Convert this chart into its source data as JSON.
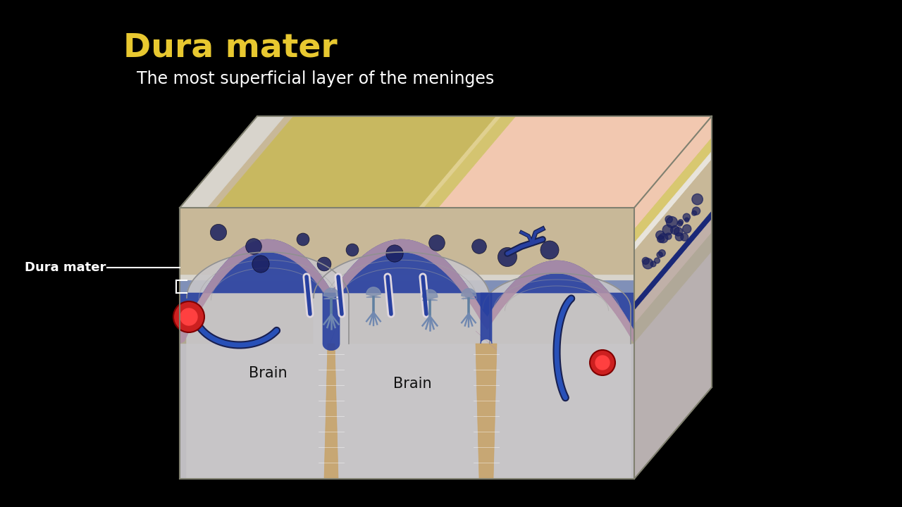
{
  "background_color": "#000000",
  "title": "Dura mater",
  "title_color": "#E8C830",
  "title_fontsize": 34,
  "subtitle": "The most superficial layer of the meninges",
  "subtitle_color": "#FFFFFF",
  "subtitle_fontsize": 17,
  "label_dura": "Dura mater",
  "label_brain_color": "#111111",
  "label_brain_fontsize": 15,
  "colors": {
    "skin_pink": "#F2C8B0",
    "yellow_fat": "#D8C870",
    "white_layer": "#E8E4DC",
    "skull_bone": "#C8B898",
    "dura_blue": "#2840A0",
    "subarachnoid_blue": "#3858B8",
    "arachnoid_blue_light": "#7090C8",
    "pia_mauve": "#B090A8",
    "brain_sulcus_brown": "#C8A060",
    "brain_gray": "#C0BEC2",
    "brain_outline": "#909090",
    "red_vessel": "#CC2020",
    "dark_navy": "#182050"
  }
}
